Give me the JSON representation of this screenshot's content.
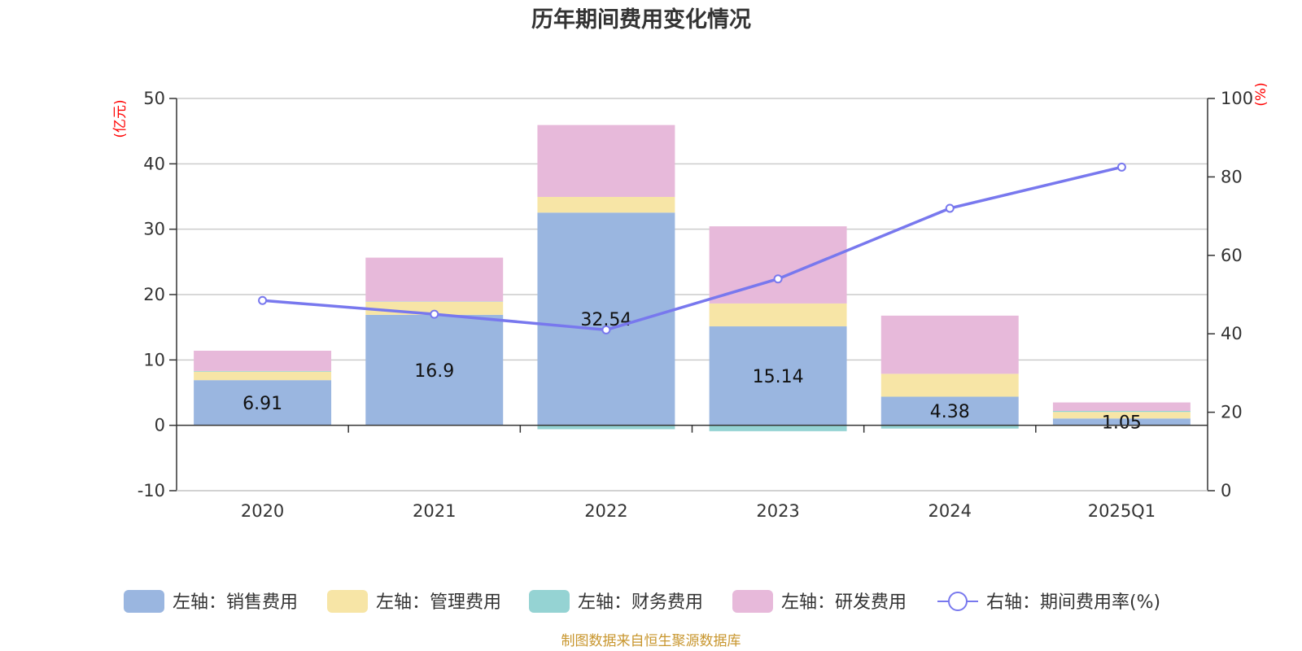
{
  "chart_data": {
    "type": "bar",
    "title": "历年期间费用变化情况",
    "categories": [
      "2020",
      "2021",
      "2022",
      "2023",
      "2024",
      "2025Q1"
    ],
    "left_axis": {
      "unit": "(亿元)",
      "ylim": [
        -10,
        50
      ],
      "ticks": [
        "50",
        "40",
        "30",
        "20",
        "10",
        "0",
        "-10"
      ]
    },
    "right_axis": {
      "unit": "(%)",
      "ylim": [
        0,
        100
      ],
      "ticks": [
        "100",
        "80",
        "60",
        "40",
        "20",
        "0"
      ]
    },
    "series": [
      {
        "name": "左轴：销售费用",
        "type": "bar",
        "stack": true,
        "color": "#9ab6e0",
        "values": [
          6.91,
          16.9,
          32.54,
          15.14,
          4.38,
          1.05
        ],
        "labels": [
          "6.91",
          "16.9",
          "32.54",
          "15.14",
          "4.38",
          "1.05"
        ]
      },
      {
        "name": "左轴：管理费用",
        "type": "bar",
        "stack": true,
        "color": "#f7e5a6",
        "values": [
          1.3,
          2.0,
          2.4,
          3.5,
          3.5,
          1.0
        ]
      },
      {
        "name": "左轴：财务费用",
        "type": "bar",
        "stack": true,
        "color": "#95d3d3",
        "values": [
          0.1,
          0.05,
          -0.6,
          -0.9,
          -0.5,
          0.15
        ]
      },
      {
        "name": "左轴：研发费用",
        "type": "bar",
        "stack": true,
        "color": "#e7b9da",
        "values": [
          3.1,
          6.7,
          11.0,
          11.8,
          8.9,
          1.3
        ]
      },
      {
        "name": "右轴：期间费用率(%)",
        "type": "line",
        "axis": "right",
        "color": "#7878ee",
        "values": [
          48.5,
          45.0,
          41.0,
          54.0,
          72.0,
          82.5
        ]
      }
    ],
    "grid": true,
    "legend_position": "bottom"
  },
  "source_text": "制图数据来自恒生聚源数据库"
}
